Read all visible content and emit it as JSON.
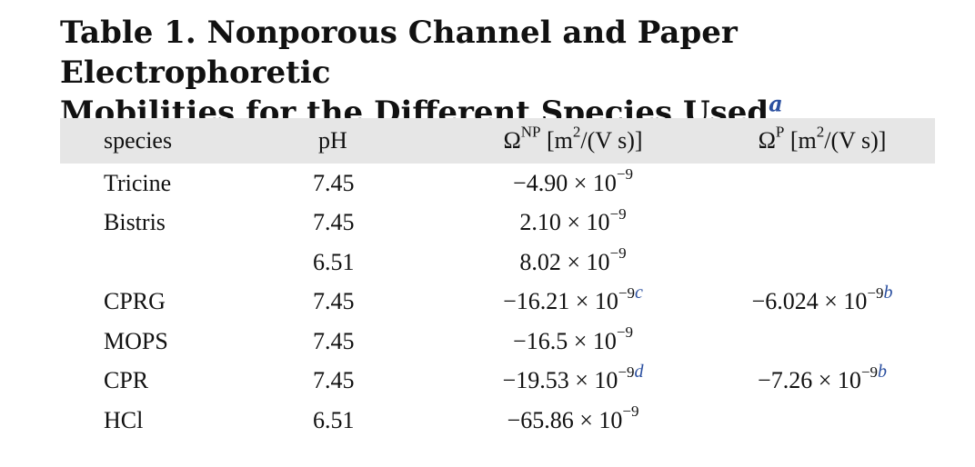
{
  "caption": {
    "line1": "Table 1. Nonporous Channel and Paper Electrophoretic",
    "line2": "Mobilities for the Different Species Used",
    "footnote": "a"
  },
  "header": {
    "species": "species",
    "ph": "pH",
    "np_symbol": "Ω",
    "np_sup": "NP",
    "np_unit_pre": " [m",
    "np_unit_sup": "2",
    "np_unit_post": "/(V s)]",
    "p_symbol": "Ω",
    "p_sup": "P",
    "p_unit_pre": " [m",
    "p_unit_sup": "2",
    "p_unit_post": "/(V s)]"
  },
  "rows": [
    {
      "species": "Tricine",
      "ph": "7.45",
      "np_mant": "−4.90 × 10",
      "np_exp": "−9",
      "np_fn": "",
      "p_mant": "",
      "p_exp": "",
      "p_fn": ""
    },
    {
      "species": "Bistris",
      "ph": "7.45",
      "np_mant": "2.10 × 10",
      "np_exp": "−9",
      "np_fn": "",
      "p_mant": "",
      "p_exp": "",
      "p_fn": ""
    },
    {
      "species": "",
      "ph": "6.51",
      "np_mant": "8.02 × 10",
      "np_exp": "−9",
      "np_fn": "",
      "p_mant": "",
      "p_exp": "",
      "p_fn": ""
    },
    {
      "species": "CPRG",
      "ph": "7.45",
      "np_mant": "−16.21 × 10",
      "np_exp": "−9",
      "np_fn": "c",
      "p_mant": "−6.024 × 10",
      "p_exp": "−9",
      "p_fn": "b"
    },
    {
      "species": "MOPS",
      "ph": "7.45",
      "np_mant": "−16.5 × 10",
      "np_exp": "−9",
      "np_fn": "",
      "p_mant": "",
      "p_exp": "",
      "p_fn": ""
    },
    {
      "species": "CPR",
      "ph": "7.45",
      "np_mant": "−19.53 × 10",
      "np_exp": "−9",
      "np_fn": "d",
      "p_mant": "−7.26 × 10",
      "p_exp": "−9",
      "p_fn": "b"
    },
    {
      "species": "HCl",
      "ph": "6.51",
      "np_mant": "−65.86 × 10",
      "np_exp": "−9",
      "np_fn": "",
      "p_mant": "",
      "p_exp": "",
      "p_fn": ""
    }
  ]
}
